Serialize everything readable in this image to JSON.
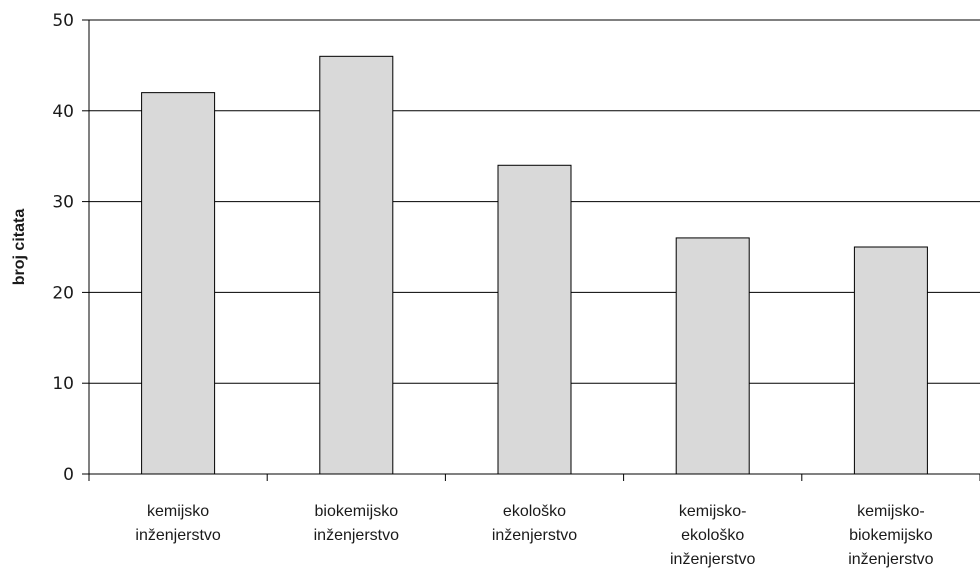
{
  "chart_data": {
    "type": "bar",
    "categories": [
      [
        "kemijsko",
        "inženjerstvo"
      ],
      [
        "biokemijsko",
        "inženjerstvo"
      ],
      [
        "ekološko",
        "inženjerstvo"
      ],
      [
        "kemijsko-",
        "ekološko",
        "inženjerstvo"
      ],
      [
        "kemijsko-",
        "biokemijsko",
        "inženjerstvo"
      ]
    ],
    "values": [
      42,
      46,
      34,
      26,
      25
    ],
    "ylabel": "broj citata",
    "xlabel": "",
    "ylim": [
      0,
      50
    ],
    "yticks": [
      0,
      10,
      20,
      30,
      40,
      50
    ],
    "grid": true,
    "colors": {
      "bar_fill": "#d9d9d9",
      "bar_stroke": "#000000",
      "grid": "#000000",
      "axis": "#000000"
    }
  }
}
